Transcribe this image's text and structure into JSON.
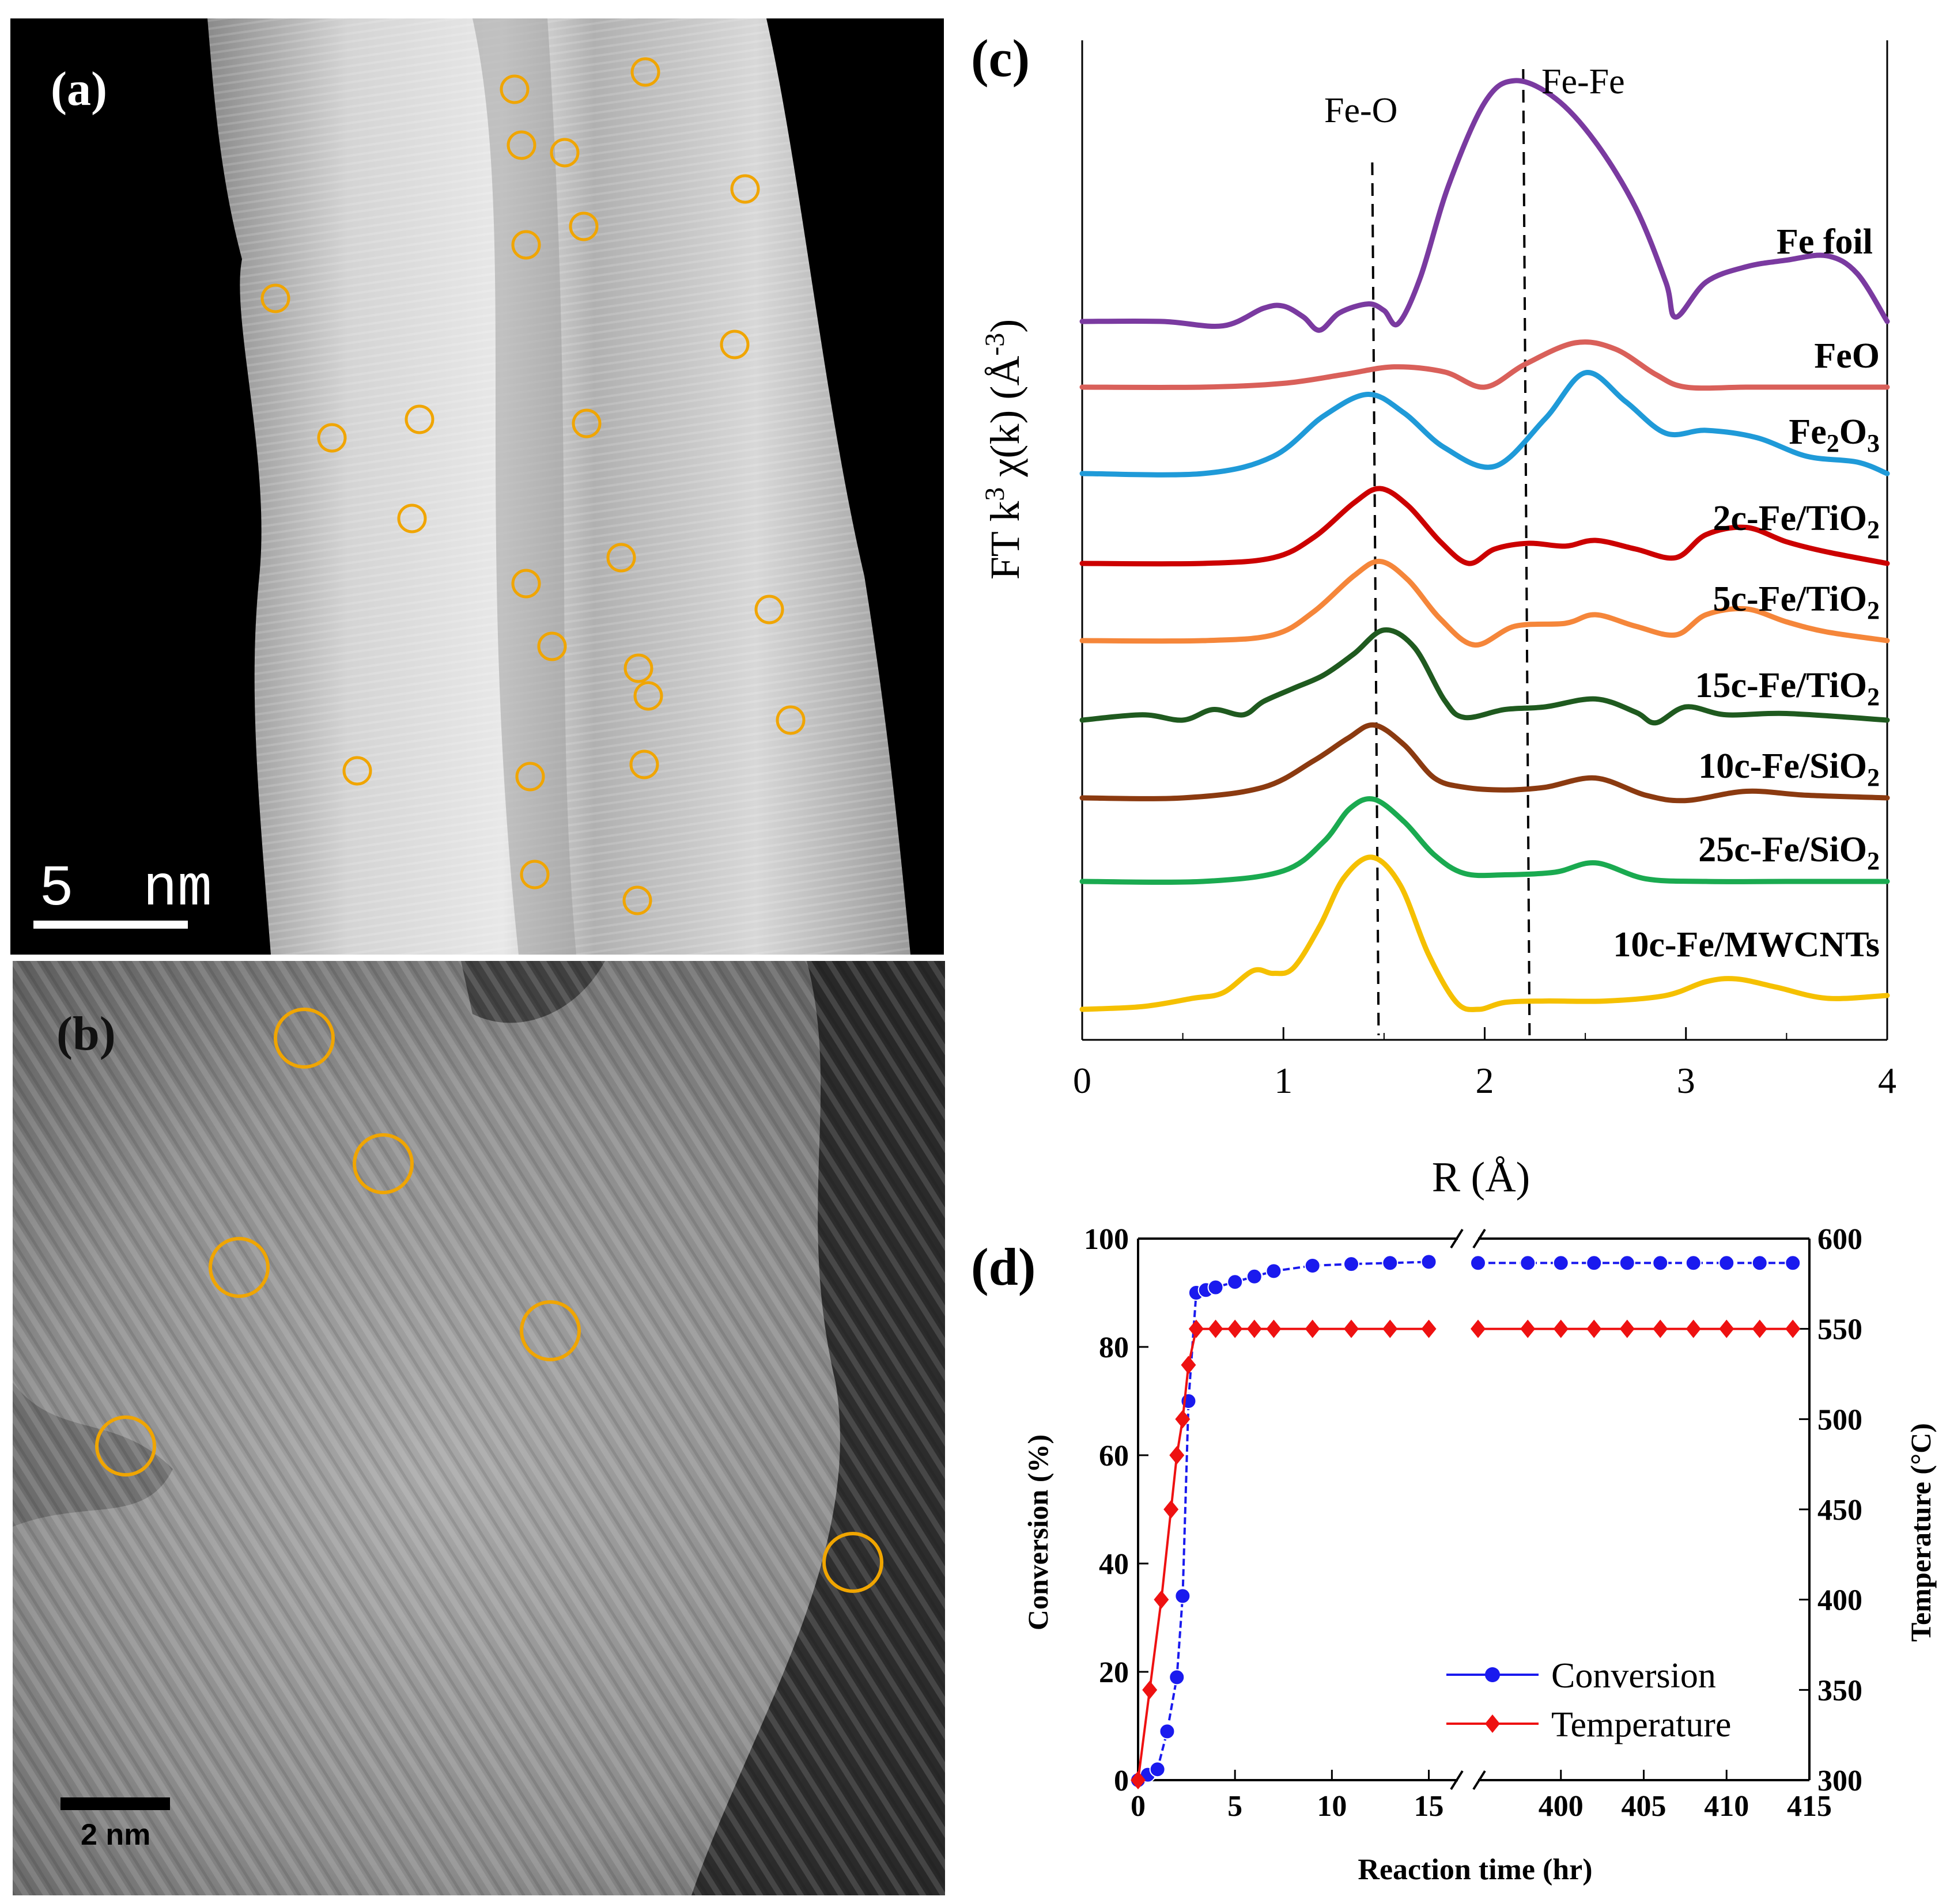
{
  "colors": {
    "marker": "#f0a500",
    "fe_foil": "#7a3aa0",
    "feo": "#d9605a",
    "fe2o3": "#1f9ad8",
    "c2_ti": "#cc0000",
    "c5_ti": "#f5863a",
    "c15_ti": "#1f5a1f",
    "c10_si": "#8b3a10",
    "c25_si": "#1aaa50",
    "c10_mw": "#f5c000",
    "conversion": "#1a1aee",
    "temperature": "#ee1111"
  },
  "panel_a": {
    "label": "(a)",
    "scale_bar": "5  nm"
  },
  "panel_b": {
    "label": "(b)",
    "scale_bar": "2 nm"
  },
  "panel_c": {
    "label": "(c)",
    "annotation_feo": "Fe-O",
    "annotation_fefe": "Fe-Fe",
    "ylabel_parts": [
      "FT k",
      "3",
      " χ(k) (Å",
      "-3",
      ")"
    ],
    "xlabel": "R (Å)",
    "xticks": [
      "0",
      "1",
      "2",
      "3",
      "4"
    ],
    "dashed_lines_R": [
      1.45,
      2.2
    ]
  },
  "panel_d": {
    "label": "(d)",
    "ylabel_left": "Conversion (%)",
    "ylabel_right": "Temperature (°C)",
    "xlabel": "Reaction time (hr)",
    "yticks_left": [
      "0",
      "20",
      "40",
      "60",
      "80",
      "100"
    ],
    "yticks_right": [
      "300",
      "350",
      "400",
      "450",
      "500",
      "550",
      "600"
    ],
    "xticks": [
      "0",
      "5",
      "10",
      "15",
      "400",
      "405",
      "410",
      "415"
    ],
    "legend": [
      "Conversion",
      "Temperature"
    ]
  },
  "chart_data": [
    {
      "type": "line",
      "title": "(c)",
      "xlabel": "R (Å)",
      "ylabel": "FT k3 χ(k) (Å-3)",
      "xlim": [
        0,
        4
      ],
      "series": [
        {
          "name": "Fe foil",
          "name_parts": [
            "Fe foil"
          ],
          "color_key": "fe_foil",
          "offset": 0.0,
          "x": [
            0,
            0.4,
            0.7,
            0.9,
            1.0,
            1.1,
            1.18,
            1.28,
            1.42,
            1.5,
            1.57,
            1.68,
            1.82,
            2.0,
            2.15,
            2.35,
            2.55,
            2.75,
            2.9,
            2.95,
            3.1,
            3.3,
            3.5,
            3.7,
            3.85,
            4.0
          ],
          "y": [
            0.0,
            0.0,
            -0.02,
            0.06,
            0.07,
            0.02,
            -0.04,
            0.04,
            0.08,
            0.05,
            -0.01,
            0.2,
            0.62,
            1.0,
            1.1,
            1.02,
            0.82,
            0.52,
            0.18,
            0.02,
            0.18,
            0.25,
            0.28,
            0.3,
            0.22,
            0.0
          ]
        },
        {
          "name": "FeO",
          "name_parts": [
            "FeO"
          ],
          "color_key": "feo",
          "offset": 0.0,
          "x": [
            0,
            0.6,
            1.0,
            1.3,
            1.55,
            1.8,
            2.0,
            2.2,
            2.45,
            2.65,
            2.85,
            3.0,
            3.3,
            3.6,
            4.0
          ],
          "y": [
            0.0,
            0.0,
            0.03,
            0.1,
            0.16,
            0.12,
            0.0,
            0.18,
            0.35,
            0.3,
            0.1,
            0.0,
            0.0,
            0.0,
            0.0
          ]
        },
        {
          "name": "Fe2O3",
          "name_parts": [
            "Fe",
            "2",
            "O",
            "3"
          ],
          "color_key": "fe2o3",
          "offset": 0.0,
          "x": [
            0,
            0.6,
            0.95,
            1.2,
            1.42,
            1.6,
            1.8,
            2.05,
            2.3,
            2.5,
            2.7,
            2.9,
            3.1,
            3.35,
            3.6,
            3.85,
            4.0
          ],
          "y": [
            0.0,
            0.0,
            0.12,
            0.4,
            0.55,
            0.42,
            0.18,
            0.05,
            0.38,
            0.7,
            0.5,
            0.28,
            0.3,
            0.25,
            0.12,
            0.08,
            0.0
          ]
        },
        {
          "name": "2c-Fe/TiO2",
          "name_parts": [
            "2c-Fe/TiO",
            "2"
          ],
          "color_key": "c2_ti",
          "offset": 0.0,
          "x": [
            0,
            0.6,
            0.95,
            1.15,
            1.35,
            1.48,
            1.62,
            1.78,
            1.92,
            2.05,
            2.22,
            2.4,
            2.55,
            2.75,
            2.95,
            3.1,
            3.3,
            3.5,
            3.7,
            4.0
          ],
          "y": [
            0.0,
            0.0,
            0.04,
            0.18,
            0.42,
            0.52,
            0.4,
            0.15,
            0.0,
            0.1,
            0.14,
            0.12,
            0.16,
            0.1,
            0.04,
            0.2,
            0.25,
            0.15,
            0.08,
            0.0
          ]
        },
        {
          "name": "5c-Fe/TiO2",
          "name_parts": [
            "5c-Fe/TiO",
            "2"
          ],
          "color_key": "c5_ti",
          "offset": 0.0,
          "x": [
            0,
            0.6,
            0.95,
            1.15,
            1.35,
            1.48,
            1.62,
            1.78,
            1.95,
            2.15,
            2.4,
            2.55,
            2.75,
            2.95,
            3.1,
            3.3,
            3.5,
            3.7,
            4.0
          ],
          "y": [
            0.0,
            0.0,
            0.04,
            0.2,
            0.45,
            0.55,
            0.42,
            0.15,
            -0.03,
            0.1,
            0.12,
            0.18,
            0.1,
            0.04,
            0.18,
            0.22,
            0.13,
            0.06,
            0.0
          ]
        },
        {
          "name": "15c-Fe/TiO2",
          "name_parts": [
            "15c-Fe/TiO",
            "2"
          ],
          "color_key": "c15_ti",
          "offset": 0.0,
          "x": [
            0,
            0.3,
            0.5,
            0.65,
            0.8,
            0.9,
            1.05,
            1.2,
            1.35,
            1.5,
            1.65,
            1.8,
            1.9,
            2.1,
            2.3,
            2.55,
            2.75,
            2.85,
            3.0,
            3.2,
            3.5,
            4.0
          ],
          "y": [
            0.0,
            0.04,
            0.0,
            0.08,
            0.04,
            0.14,
            0.24,
            0.34,
            0.5,
            0.68,
            0.55,
            0.15,
            0.02,
            0.08,
            0.1,
            0.16,
            0.06,
            -0.02,
            0.1,
            0.04,
            0.05,
            0.0
          ]
        },
        {
          "name": "10c-Fe/SiO2",
          "name_parts": [
            "10c-Fe/SiO",
            "2"
          ],
          "color_key": "c10_si",
          "offset": 0.0,
          "x": [
            0,
            0.5,
            0.9,
            1.15,
            1.32,
            1.45,
            1.6,
            1.75,
            1.9,
            2.1,
            2.3,
            2.55,
            2.8,
            3.0,
            3.3,
            3.6,
            4.0
          ],
          "y": [
            0.0,
            0.0,
            0.08,
            0.28,
            0.45,
            0.55,
            0.4,
            0.15,
            0.08,
            0.06,
            0.08,
            0.15,
            0.02,
            -0.02,
            0.05,
            0.02,
            0.0
          ]
        },
        {
          "name": "25c-Fe/SiO2",
          "name_parts": [
            "25c-Fe/SiO",
            "2"
          ],
          "color_key": "c25_si",
          "offset": 0.0,
          "x": [
            0,
            0.6,
            1.0,
            1.2,
            1.33,
            1.45,
            1.6,
            1.75,
            1.9,
            2.1,
            2.35,
            2.55,
            2.8,
            3.1,
            3.5,
            4.0
          ],
          "y": [
            0.0,
            0.0,
            0.08,
            0.3,
            0.55,
            0.62,
            0.45,
            0.2,
            0.06,
            0.05,
            0.07,
            0.14,
            0.02,
            0.0,
            0.0,
            0.0
          ]
        },
        {
          "name": "10c-Fe/MWCNTs",
          "name_parts": [
            "10c-Fe/MWCNTs"
          ],
          "color_key": "c10_mw",
          "offset": 0.0,
          "x": [
            0,
            0.3,
            0.55,
            0.7,
            0.85,
            0.95,
            1.05,
            1.18,
            1.3,
            1.44,
            1.58,
            1.72,
            1.86,
            1.97,
            2.1,
            2.3,
            2.6,
            2.9,
            3.1,
            3.25,
            3.45,
            3.7,
            4.0
          ],
          "y": [
            0.0,
            0.02,
            0.08,
            0.12,
            0.28,
            0.26,
            0.3,
            0.6,
            0.95,
            1.1,
            0.9,
            0.4,
            0.05,
            0.0,
            0.05,
            0.06,
            0.06,
            0.1,
            0.2,
            0.22,
            0.16,
            0.08,
            0.1
          ]
        }
      ]
    },
    {
      "type": "line",
      "title": "(d)",
      "xlabel": "Reaction time (hr)",
      "ylabel": "Conversion (%)",
      "ylabel_right": "Temperature (°C)",
      "ylim": [
        0,
        100
      ],
      "ylim_right": [
        300,
        600
      ],
      "x_segments": [
        [
          0,
          15
        ],
        [
          395,
          415
        ]
      ],
      "series": [
        {
          "name": "Conversion",
          "axis": "left",
          "marker": "circle",
          "color_key": "conversion",
          "x": [
            0,
            0.5,
            1,
            1.5,
            2,
            2.3,
            2.6,
            3,
            3.5,
            4,
            5,
            6,
            7,
            9,
            11,
            13,
            15,
            395,
            398,
            400,
            402,
            404,
            406,
            408,
            410,
            412,
            414
          ],
          "y": [
            0,
            1,
            2,
            9,
            19,
            34,
            70,
            90,
            90.5,
            91,
            92,
            93,
            94,
            95,
            95.3,
            95.5,
            95.7,
            95.5,
            95.5,
            95.5,
            95.5,
            95.5,
            95.5,
            95.5,
            95.5,
            95.5,
            95.5
          ]
        },
        {
          "name": "Temperature",
          "axis": "right",
          "marker": "diamond",
          "color_key": "temperature",
          "x": [
            0,
            0.6,
            1.2,
            1.7,
            2,
            2.3,
            2.6,
            3,
            4,
            5,
            6,
            7,
            9,
            11,
            13,
            15,
            395,
            398,
            400,
            402,
            404,
            406,
            408,
            410,
            412,
            414
          ],
          "y": [
            300,
            350,
            400,
            450,
            480,
            500,
            530,
            550,
            550,
            550,
            550,
            550,
            550,
            550,
            550,
            550,
            550,
            550,
            550,
            550,
            550,
            550,
            550,
            550,
            550,
            550
          ]
        }
      ]
    }
  ]
}
